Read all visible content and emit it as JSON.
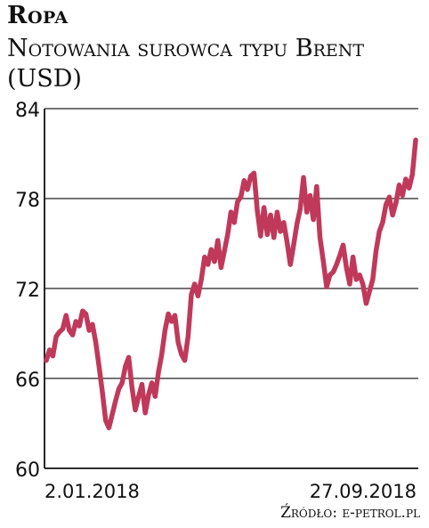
{
  "chart_data": {
    "type": "line",
    "title": "Ropa",
    "subtitle": "Notowania surowca typu Brent (USD)",
    "xlabel": "",
    "ylabel": "",
    "y_ticks": [
      60,
      66,
      72,
      78,
      84
    ],
    "ylim": [
      60,
      84
    ],
    "x_tick_labels": [
      "2.01.2018",
      "27.09.2018"
    ],
    "grid": true,
    "line_color": "#c0395a",
    "source": "Źródło: e-petrol.pl",
    "series": [
      {
        "values": [
          67.2,
          67.9,
          67.5,
          68.8,
          69.1,
          69.3,
          70.2,
          69.2,
          68.9,
          69.8,
          69.5,
          70.5,
          70.3,
          69.2,
          69.6,
          68.4,
          66.8,
          65.1,
          63.2,
          62.7,
          63.6,
          64.5,
          65.3,
          65.7,
          66.8,
          67.4,
          65.4,
          63.9,
          64.8,
          65.6,
          63.7,
          64.9,
          65.7,
          64.8,
          66.4,
          67.6,
          69.2,
          70.3,
          69.8,
          70.2,
          68.4,
          67.6,
          67.2,
          68.8,
          71.6,
          72.3,
          71.5,
          72.6,
          74.1,
          73.6,
          74.6,
          73.8,
          75.2,
          73.4,
          74.5,
          75.6,
          77.1,
          76.4,
          77.8,
          78.1,
          79.2,
          78.6,
          79.5,
          79.7,
          77.2,
          75.5,
          77.4,
          75.6,
          76.9,
          75.4,
          77.1,
          75.8,
          76.4,
          75.1,
          73.6,
          74.9,
          76.3,
          77.3,
          79.4,
          77.1,
          78.2,
          76.6,
          78.8,
          75.4,
          73.8,
          72.1,
          72.9,
          73.1,
          73.6,
          74.2,
          74.9,
          73.4,
          72.3,
          74.1,
          72.6,
          72.9,
          72.3,
          71.0,
          71.8,
          72.6,
          74.5,
          75.8,
          76.4,
          77.6,
          78.1,
          76.9,
          77.7,
          78.9,
          78.2,
          79.3,
          78.7,
          79.6,
          81.9
        ]
      }
    ]
  }
}
